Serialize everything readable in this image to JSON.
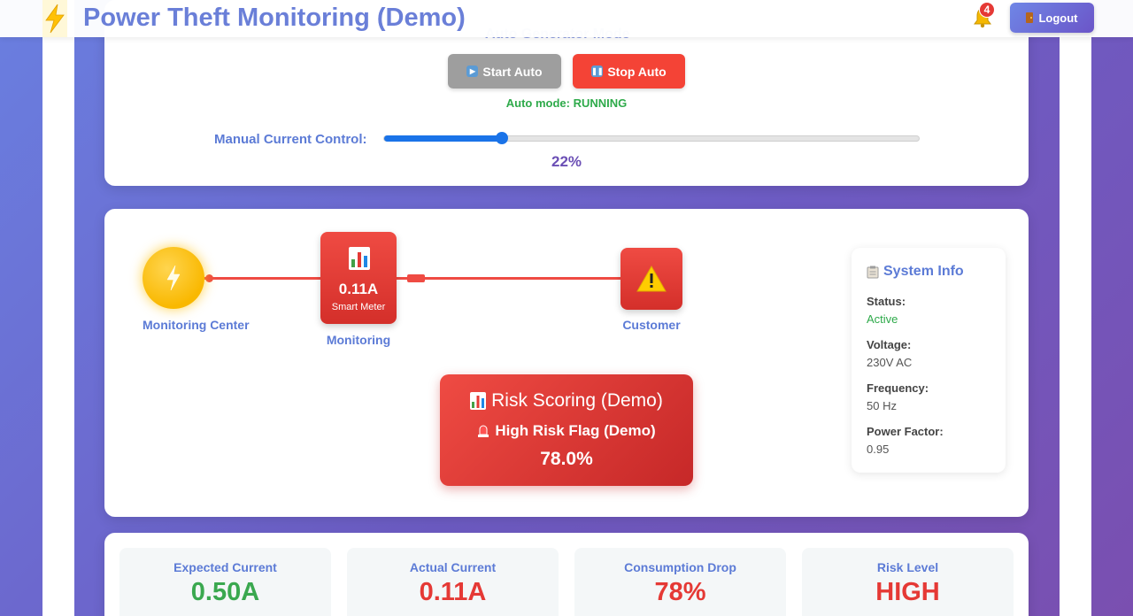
{
  "header": {
    "title": "Power Theft Monitoring (Demo)",
    "notification_count": "4",
    "logout_label": "Logout"
  },
  "auto_panel": {
    "title": "Auto Generator Mode",
    "start_label": "Start Auto",
    "stop_label": "Stop Auto",
    "status_text": "Auto mode: RUNNING",
    "slider_label": "Manual Current Control:",
    "slider_value_text": "22%",
    "slider_fraction": 0.22
  },
  "diagram": {
    "center_label": "Monitoring Center",
    "meter_reading": "0.11A",
    "meter_caption": "Smart Meter",
    "meter_label": "Monitoring",
    "customer_label": "Customer",
    "risk_title": "Risk Scoring (Demo)",
    "risk_flag": "High Risk Flag (Demo)",
    "risk_score": "78.0%"
  },
  "system_info": {
    "title": "System Info",
    "items": [
      {
        "label": "Status:",
        "value": "Active"
      },
      {
        "label": "Voltage:",
        "value": "230V AC"
      },
      {
        "label": "Frequency:",
        "value": "50 Hz"
      },
      {
        "label": "Power Factor:",
        "value": "0.95"
      }
    ]
  },
  "metrics": [
    {
      "label": "Expected Current",
      "value": "0.50A",
      "color": "#3aa84f"
    },
    {
      "label": "Actual Current",
      "value": "0.11A",
      "color": "#e53935"
    },
    {
      "label": "Consumption Drop",
      "value": "78%",
      "color": "#e53935"
    },
    {
      "label": "Risk Level",
      "value": "HIGH",
      "color": "#e53935"
    }
  ],
  "colors": {
    "accent": "#5c7bd6",
    "danger": "#ef4b43",
    "success": "#2eaa4a"
  }
}
